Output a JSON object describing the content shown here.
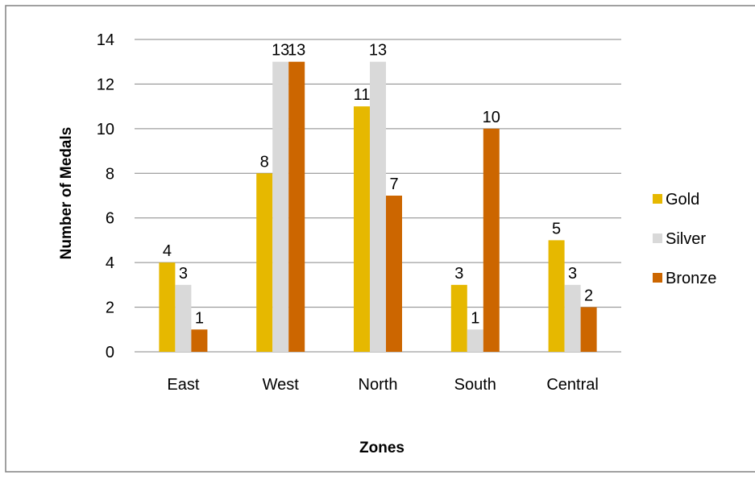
{
  "chart_data": {
    "type": "bar",
    "title": "",
    "xlabel": "Zones",
    "ylabel": "Number of Medals",
    "categories": [
      "East",
      "West",
      "North",
      "South",
      "Central"
    ],
    "series": [
      {
        "name": "Gold",
        "values": [
          4,
          8,
          11,
          3,
          5
        ],
        "color": "#E6B800"
      },
      {
        "name": "Silver",
        "values": [
          3,
          13,
          13,
          1,
          3
        ],
        "color": "#D9D9D9"
      },
      {
        "name": "Bronze",
        "values": [
          1,
          13,
          7,
          10,
          2
        ],
        "color": "#CC6600"
      }
    ],
    "ylim": [
      0,
      14
    ],
    "yticks": [
      0,
      2,
      4,
      6,
      8,
      10,
      12,
      14
    ],
    "grid": true,
    "legend_position": "right",
    "data_labels": true
  }
}
